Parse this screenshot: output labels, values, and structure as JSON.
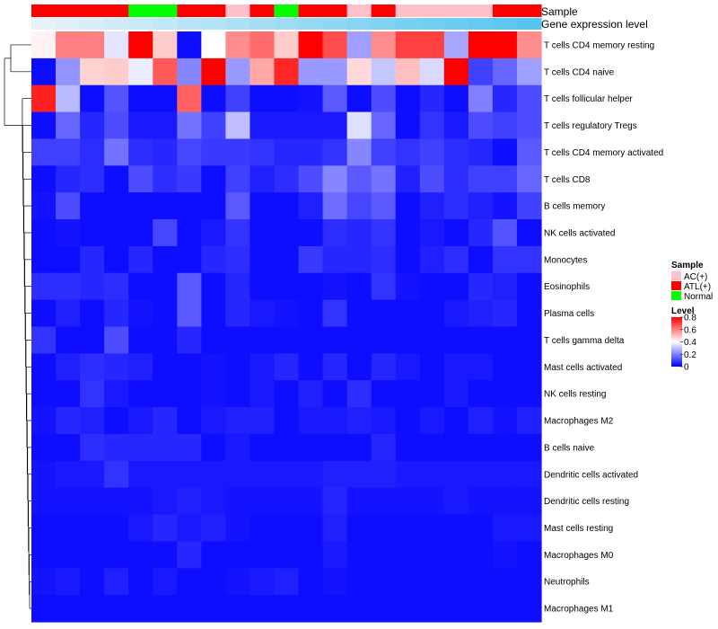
{
  "chart_data": {
    "type": "heatmap",
    "title": "",
    "track_labels": {
      "sample": "Sample",
      "expression": "Gene expression level"
    },
    "sample_groups": [
      "ATL(+)",
      "ATL(+)",
      "ATL(+)",
      "ATL(+)",
      "Normal",
      "Normal",
      "ATL(+)",
      "ATL(+)",
      "AC(+)",
      "ATL(+)",
      "Normal",
      "ATL(+)",
      "ATL(+)",
      "AC(+)",
      "ATL(+)",
      "AC(+)",
      "AC(+)",
      "AC(+)",
      "AC(+)",
      "ATL(+)",
      "ATL(+)"
    ],
    "expression_level": [
      0.0,
      0.05,
      0.1,
      0.15,
      0.2,
      0.25,
      0.3,
      0.35,
      0.4,
      0.45,
      0.5,
      0.55,
      0.6,
      0.65,
      0.7,
      0.75,
      0.8,
      0.85,
      0.9,
      0.95,
      1.0
    ],
    "rows": [
      "T cells CD4 memory resting",
      "T cells CD4 naive",
      "T cells follicular helper",
      "T cells regulatory  Tregs",
      "T cells CD4 memory activated",
      "T cells CD8",
      "B cells memory",
      "NK cells activated",
      "Monocytes",
      "Eosinophils",
      "Plasma cells",
      "T cells gamma delta",
      "Mast cells activated",
      "NK cells resting",
      "Macrophages M2",
      "B cells naive",
      "Dendritic cells activated",
      "Dendritic cells resting",
      "Mast cells resting",
      "Macrophages M0",
      "Neutrophils",
      "Macrophages M1"
    ],
    "values": [
      [
        0.42,
        0.6,
        0.6,
        0.36,
        0.8,
        0.48,
        0.02,
        0.4,
        0.58,
        0.63,
        0.48,
        0.82,
        0.68,
        0.25,
        0.58,
        0.7,
        0.7,
        0.26,
        0.8,
        0.8,
        0.58
      ],
      [
        0.02,
        0.23,
        0.47,
        0.48,
        0.37,
        0.66,
        0.21,
        0.8,
        0.24,
        0.54,
        0.74,
        0.24,
        0.24,
        0.46,
        0.31,
        0.5,
        0.34,
        0.8,
        0.1,
        0.16,
        0.25
      ],
      [
        0.75,
        0.29,
        0.02,
        0.13,
        0.02,
        0.02,
        0.65,
        0.02,
        0.1,
        0.02,
        0.02,
        0.03,
        0.14,
        0.02,
        0.12,
        0.02,
        0.06,
        0.02,
        0.2,
        0.06,
        0.12
      ],
      [
        0.02,
        0.16,
        0.06,
        0.12,
        0.04,
        0.04,
        0.18,
        0.1,
        0.3,
        0.04,
        0.04,
        0.04,
        0.04,
        0.35,
        0.16,
        0.02,
        0.08,
        0.04,
        0.12,
        0.1,
        0.12
      ],
      [
        0.1,
        0.1,
        0.07,
        0.18,
        0.07,
        0.06,
        0.11,
        0.09,
        0.09,
        0.08,
        0.06,
        0.06,
        0.08,
        0.21,
        0.1,
        0.08,
        0.1,
        0.07,
        0.06,
        0.02,
        0.14
      ],
      [
        0.02,
        0.06,
        0.07,
        0.02,
        0.12,
        0.07,
        0.09,
        0.02,
        0.1,
        0.05,
        0.07,
        0.12,
        0.21,
        0.14,
        0.18,
        0.05,
        0.12,
        0.07,
        0.1,
        0.1,
        0.16
      ],
      [
        0.03,
        0.12,
        0.02,
        0.02,
        0.02,
        0.02,
        0.02,
        0.02,
        0.14,
        0.02,
        0.02,
        0.05,
        0.17,
        0.11,
        0.14,
        0.02,
        0.05,
        0.07,
        0.05,
        0.03,
        0.1
      ],
      [
        0.02,
        0.03,
        0.02,
        0.02,
        0.02,
        0.11,
        0.02,
        0.04,
        0.08,
        0.02,
        0.02,
        0.02,
        0.07,
        0.06,
        0.08,
        0.02,
        0.04,
        0.02,
        0.06,
        0.13,
        0.02
      ],
      [
        0.02,
        0.02,
        0.06,
        0.02,
        0.06,
        0.02,
        0.02,
        0.06,
        0.07,
        0.02,
        0.02,
        0.09,
        0.06,
        0.06,
        0.07,
        0.02,
        0.05,
        0.07,
        0.02,
        0.08,
        0.08
      ],
      [
        0.07,
        0.07,
        0.06,
        0.07,
        0.02,
        0.02,
        0.14,
        0.02,
        0.06,
        0.02,
        0.02,
        0.02,
        0.03,
        0.02,
        0.08,
        0.03,
        0.02,
        0.02,
        0.06,
        0.05,
        0.02
      ],
      [
        0.02,
        0.05,
        0.02,
        0.06,
        0.03,
        0.02,
        0.14,
        0.02,
        0.06,
        0.04,
        0.03,
        0.02,
        0.08,
        0.02,
        0.02,
        0.02,
        0.02,
        0.04,
        0.05,
        0.06,
        0.02
      ],
      [
        0.08,
        0.02,
        0.02,
        0.12,
        0.02,
        0.02,
        0.06,
        0.02,
        0.02,
        0.02,
        0.02,
        0.02,
        0.02,
        0.02,
        0.02,
        0.02,
        0.02,
        0.02,
        0.02,
        0.02,
        0.02
      ],
      [
        0.02,
        0.05,
        0.07,
        0.06,
        0.05,
        0.02,
        0.02,
        0.03,
        0.02,
        0.04,
        0.06,
        0.02,
        0.06,
        0.02,
        0.06,
        0.04,
        0.02,
        0.04,
        0.04,
        0.02,
        0.02
      ],
      [
        0.02,
        0.02,
        0.08,
        0.04,
        0.02,
        0.02,
        0.02,
        0.03,
        0.02,
        0.04,
        0.02,
        0.05,
        0.02,
        0.07,
        0.02,
        0.02,
        0.02,
        0.04,
        0.02,
        0.02,
        0.02
      ],
      [
        0.03,
        0.06,
        0.05,
        0.02,
        0.04,
        0.06,
        0.02,
        0.04,
        0.05,
        0.05,
        0.02,
        0.04,
        0.04,
        0.05,
        0.04,
        0.02,
        0.04,
        0.02,
        0.05,
        0.03,
        0.05
      ],
      [
        0.02,
        0.02,
        0.07,
        0.06,
        0.06,
        0.06,
        0.06,
        0.02,
        0.04,
        0.02,
        0.02,
        0.02,
        0.02,
        0.02,
        0.06,
        0.02,
        0.02,
        0.02,
        0.02,
        0.02,
        0.02
      ],
      [
        0.03,
        0.04,
        0.04,
        0.08,
        0.04,
        0.04,
        0.04,
        0.04,
        0.04,
        0.04,
        0.04,
        0.04,
        0.05,
        0.05,
        0.05,
        0.04,
        0.04,
        0.04,
        0.04,
        0.04,
        0.04
      ],
      [
        0.03,
        0.03,
        0.03,
        0.03,
        0.03,
        0.04,
        0.05,
        0.04,
        0.03,
        0.03,
        0.03,
        0.03,
        0.06,
        0.03,
        0.03,
        0.03,
        0.03,
        0.04,
        0.03,
        0.03,
        0.03
      ],
      [
        0.02,
        0.02,
        0.02,
        0.02,
        0.04,
        0.06,
        0.04,
        0.05,
        0.03,
        0.02,
        0.02,
        0.02,
        0.05,
        0.02,
        0.02,
        0.02,
        0.02,
        0.02,
        0.02,
        0.04,
        0.04
      ],
      [
        0.02,
        0.02,
        0.02,
        0.02,
        0.02,
        0.02,
        0.06,
        0.02,
        0.02,
        0.02,
        0.02,
        0.02,
        0.04,
        0.02,
        0.02,
        0.02,
        0.02,
        0.02,
        0.02,
        0.03,
        0.02
      ],
      [
        0.03,
        0.04,
        0.02,
        0.05,
        0.02,
        0.04,
        0.02,
        0.02,
        0.03,
        0.04,
        0.05,
        0.02,
        0.03,
        0.02,
        0.02,
        0.02,
        0.02,
        0.02,
        0.02,
        0.02,
        0.02
      ],
      [
        0.02,
        0.02,
        0.02,
        0.02,
        0.02,
        0.02,
        0.02,
        0.02,
        0.02,
        0.02,
        0.02,
        0.02,
        0.02,
        0.02,
        0.02,
        0.02,
        0.02,
        0.02,
        0.02,
        0.02,
        0.02
      ]
    ],
    "color_scale": {
      "low": "#0000ff",
      "mid": "#ffffff",
      "high": "#ff0000",
      "domain": [
        0,
        0.4,
        0.8
      ]
    },
    "legend": {
      "sample_title": "Sample",
      "sample_items": [
        {
          "label": "AC(+)",
          "color": "#ffc0cb"
        },
        {
          "label": "ATL(+)",
          "color": "#ff0000"
        },
        {
          "label": "Normal",
          "color": "#00ff00"
        }
      ],
      "level_title": "Level",
      "level_ticks": [
        "0.8",
        "0.6",
        "0.4",
        "0.2",
        "0"
      ],
      "level_tick_values": [
        0.8,
        0.6,
        0.4,
        0.2,
        0
      ],
      "placement": "right"
    },
    "expression_colors": {
      "start": "#e6f2f8",
      "end": "#55c6f0"
    },
    "dendrogram": true
  }
}
